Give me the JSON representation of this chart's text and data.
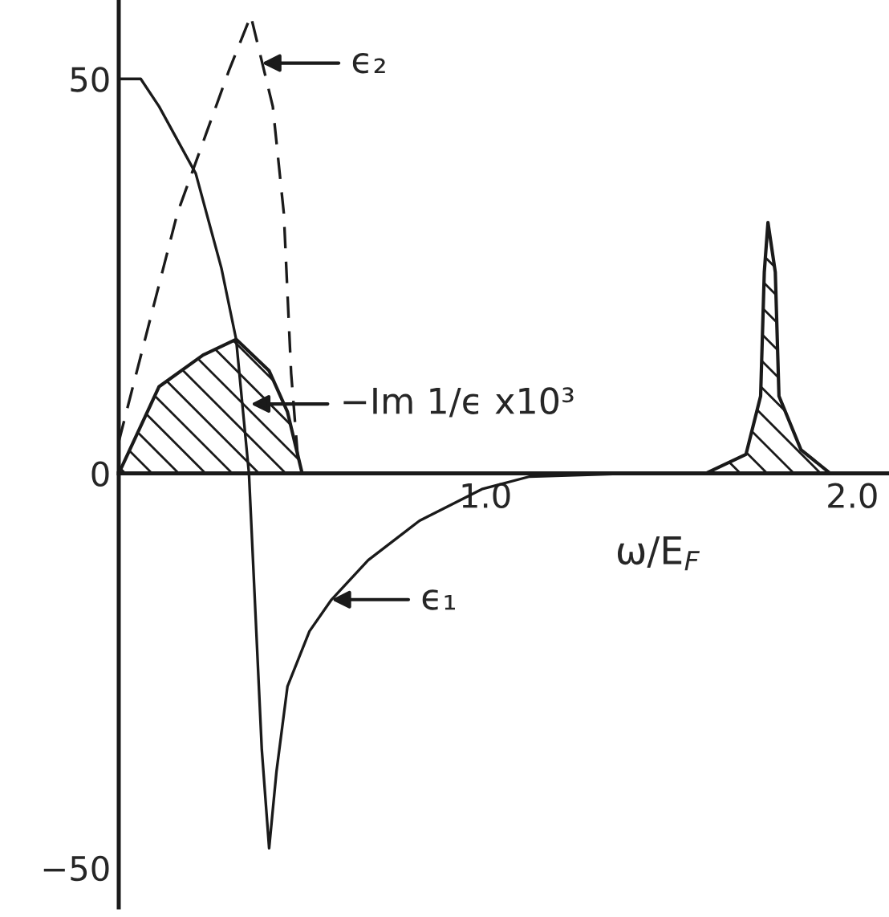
{
  "chart_data": {
    "type": "line",
    "xlabel": "ω/E$_{F}$",
    "xlim": [
      0,
      2.1
    ],
    "ylim": [
      -55,
      60
    ],
    "xticks": [
      {
        "value": 1.0,
        "label": "1.0"
      },
      {
        "value": 2.0,
        "label": "2.0"
      }
    ],
    "yticks": [
      -50,
      0,
      50
    ],
    "grid": false,
    "series": [
      {
        "line_style": "solid",
        "color": "#1a1a1a",
        "x": [
          0,
          0.06,
          0.11,
          0.21,
          0.28,
          0.32,
          0.355,
          0.39,
          0.41,
          0.43,
          0.46,
          0.52,
          0.58,
          0.68,
          0.82,
          0.99,
          1.12,
          1.4,
          2.1
        ],
        "values": [
          50,
          50,
          46.5,
          38,
          26,
          17,
          0,
          -35,
          -47.5,
          -37.8,
          -27,
          -20,
          -16,
          -11,
          -6,
          -2,
          -0.4,
          0,
          0
        ]
      },
      {
        "line_style": "dashed",
        "color": "#1a1a1a",
        "x": [
          0,
          0.16,
          0.3,
          0.36,
          0.42,
          0.45,
          0.47,
          0.49
        ],
        "values": [
          4,
          33,
          51,
          58,
          46.5,
          33,
          12.7,
          1
        ]
      },
      {
        "type": "area",
        "line_style": "solid",
        "color": "#1a1a1a",
        "x": [
          0,
          0.11,
          0.23,
          0.32,
          0.41,
          0.46,
          0.5,
          1.6,
          1.71,
          1.75,
          1.76,
          1.77,
          1.79,
          1.8,
          1.86,
          1.94
        ],
        "values": [
          0,
          11,
          15,
          17,
          13,
          7.8,
          0,
          0,
          2.4,
          9.8,
          25.5,
          31.8,
          25.5,
          9.8,
          3,
          0
        ]
      }
    ],
    "annotations": [
      {
        "text": "ϵ₂",
        "x": 0.39,
        "y": 52
      },
      {
        "text": "−Im 1/ϵ x10³",
        "x": 0.36,
        "y": 8.8
      },
      {
        "text": "ϵ₁",
        "x": 0.58,
        "y": -16
      }
    ]
  }
}
